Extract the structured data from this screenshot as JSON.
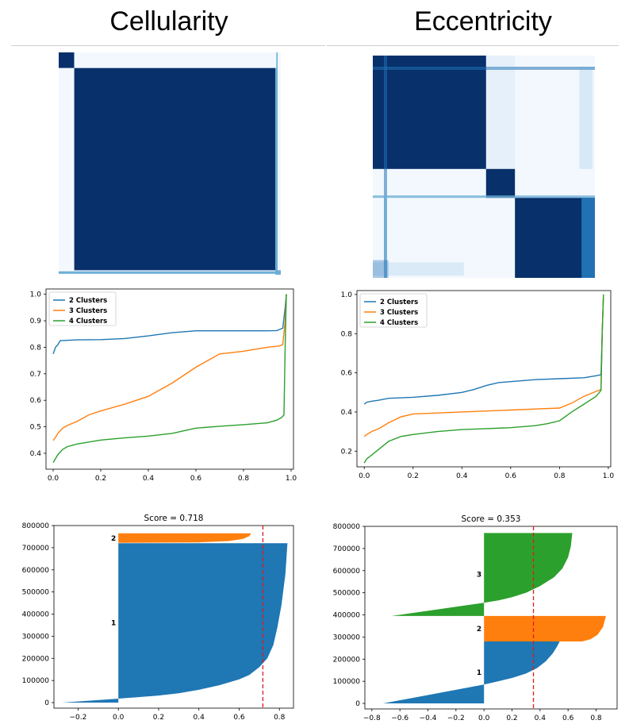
{
  "panels": {
    "left_title": "Cellularity",
    "right_title": "Eccentricity"
  },
  "colors": {
    "heatmap_dark": "#08306b",
    "heatmap_mid": "#2171b5",
    "heatmap_light": "#6baed6",
    "heatmap_pale": "#f3f8fe",
    "blue": "#1f77b4",
    "orange": "#ff7f0e",
    "green": "#2ca02c",
    "threshold": "#e31a1c"
  },
  "chart_data": [
    {
      "id": "cellularity-consensus-matrix",
      "type": "heatmap",
      "blocks": [
        [
          0.0,
          0.07
        ],
        [
          0.07,
          0.98
        ],
        [
          0.98,
          1.0
        ]
      ]
    },
    {
      "id": "eccentricity-consensus-matrix",
      "type": "heatmap",
      "blocks": [
        [
          0.0,
          0.51
        ],
        [
          0.51,
          0.64
        ],
        [
          0.64,
          1.0
        ]
      ]
    },
    {
      "id": "cellularity-cdf",
      "type": "line",
      "xlim": [
        -0.03,
        1.01
      ],
      "ylim": [
        0.34,
        1.02
      ],
      "xticks": [
        "0.0",
        "0.2",
        "0.4",
        "0.6",
        "0.8",
        "1.0"
      ],
      "yticks": [
        "0.4",
        "0.5",
        "0.6",
        "0.7",
        "0.8",
        "0.9",
        "1.0"
      ],
      "legend_position": "top-left",
      "series": [
        {
          "name": "2 Clusters",
          "color": "blue",
          "x": [
            0,
            0.01,
            0.02,
            0.03,
            0.05,
            0.1,
            0.2,
            0.3,
            0.4,
            0.5,
            0.6,
            0.7,
            0.8,
            0.9,
            0.94,
            0.965,
            0.975,
            0.98
          ],
          "y": [
            0.775,
            0.8,
            0.81,
            0.825,
            0.826,
            0.828,
            0.829,
            0.833,
            0.843,
            0.855,
            0.862,
            0.862,
            0.862,
            0.862,
            0.863,
            0.872,
            0.95,
            1.0
          ]
        },
        {
          "name": "3 Clusters",
          "color": "orange",
          "x": [
            0,
            0.01,
            0.02,
            0.04,
            0.06,
            0.1,
            0.15,
            0.2,
            0.3,
            0.4,
            0.5,
            0.6,
            0.65,
            0.7,
            0.8,
            0.9,
            0.95,
            0.965,
            0.975,
            0.98
          ],
          "y": [
            0.448,
            0.46,
            0.475,
            0.495,
            0.505,
            0.52,
            0.545,
            0.56,
            0.585,
            0.615,
            0.665,
            0.725,
            0.75,
            0.775,
            0.785,
            0.8,
            0.805,
            0.81,
            0.9,
            1.0
          ]
        },
        {
          "name": "4 Clusters",
          "color": "green",
          "x": [
            0,
            0.01,
            0.02,
            0.04,
            0.06,
            0.1,
            0.2,
            0.3,
            0.4,
            0.5,
            0.55,
            0.6,
            0.7,
            0.8,
            0.9,
            0.94,
            0.96,
            0.97,
            0.975,
            0.98
          ],
          "y": [
            0.365,
            0.38,
            0.395,
            0.415,
            0.425,
            0.435,
            0.45,
            0.458,
            0.465,
            0.475,
            0.485,
            0.495,
            0.502,
            0.508,
            0.515,
            0.525,
            0.535,
            0.545,
            0.8,
            1.0
          ]
        }
      ]
    },
    {
      "id": "eccentricity-cdf",
      "type": "line",
      "xlim": [
        -0.03,
        1.01
      ],
      "ylim": [
        0.12,
        1.02
      ],
      "xticks": [
        "0.0",
        "0.2",
        "0.4",
        "0.6",
        "0.8",
        "1.0"
      ],
      "yticks": [
        "0.2",
        "0.4",
        "0.6",
        "0.8",
        "1.0"
      ],
      "legend_position": "top-left",
      "series": [
        {
          "name": "2 Clusters",
          "color": "blue",
          "x": [
            0,
            0.01,
            0.03,
            0.06,
            0.1,
            0.2,
            0.3,
            0.4,
            0.45,
            0.5,
            0.55,
            0.6,
            0.7,
            0.8,
            0.9,
            0.95,
            0.97,
            0.975,
            0.98
          ],
          "y": [
            0.44,
            0.45,
            0.455,
            0.46,
            0.47,
            0.475,
            0.485,
            0.5,
            0.515,
            0.535,
            0.55,
            0.555,
            0.565,
            0.57,
            0.575,
            0.585,
            0.59,
            0.8,
            1.0
          ]
        },
        {
          "name": "3 Clusters",
          "color": "orange",
          "x": [
            0,
            0.01,
            0.03,
            0.06,
            0.1,
            0.15,
            0.2,
            0.3,
            0.4,
            0.5,
            0.6,
            0.7,
            0.8,
            0.85,
            0.9,
            0.95,
            0.97,
            0.975,
            0.98
          ],
          "y": [
            0.275,
            0.285,
            0.3,
            0.315,
            0.345,
            0.375,
            0.39,
            0.395,
            0.4,
            0.405,
            0.41,
            0.415,
            0.42,
            0.445,
            0.48,
            0.505,
            0.515,
            0.8,
            1.0
          ]
        },
        {
          "name": "4 Clusters",
          "color": "green",
          "x": [
            0,
            0.01,
            0.03,
            0.06,
            0.1,
            0.15,
            0.2,
            0.3,
            0.4,
            0.5,
            0.6,
            0.7,
            0.75,
            0.8,
            0.85,
            0.9,
            0.95,
            0.97,
            0.975,
            0.98
          ],
          "y": [
            0.14,
            0.16,
            0.18,
            0.21,
            0.25,
            0.275,
            0.285,
            0.3,
            0.31,
            0.315,
            0.32,
            0.33,
            0.34,
            0.355,
            0.4,
            0.44,
            0.48,
            0.51,
            0.8,
            1.0
          ]
        }
      ]
    },
    {
      "id": "cellularity-silhouette",
      "type": "area",
      "title": "Score = 0.718",
      "score": 0.718,
      "xlim": [
        -0.32,
        0.87
      ],
      "ylim": [
        -25000,
        800000
      ],
      "xticks": [
        -0.2,
        0.0,
        0.2,
        0.4,
        0.6,
        0.8
      ],
      "xtick_labels": [
        "−0.2",
        "0.0",
        "0.2",
        "0.4",
        "0.6",
        "0.8"
      ],
      "yticks": [
        0,
        100000,
        200000,
        300000,
        400000,
        500000,
        600000,
        700000,
        800000
      ],
      "ytick_labels": [
        "0",
        "100000",
        "200000",
        "300000",
        "400000",
        "500000",
        "600000",
        "700000",
        "800000"
      ],
      "clusters": [
        {
          "label": "1",
          "color": "blue",
          "y0": 0,
          "y1": 720000,
          "neg_min": -0.28,
          "neg_count": 18000,
          "x": [
            0.0,
            0.1,
            0.2,
            0.3,
            0.4,
            0.5,
            0.6,
            0.65,
            0.7,
            0.74,
            0.77,
            0.79,
            0.81,
            0.83,
            0.84
          ],
          "y": [
            18000,
            25000,
            32000,
            42000,
            58000,
            78000,
            105000,
            125000,
            160000,
            200000,
            260000,
            340000,
            440000,
            580000,
            720000
          ]
        },
        {
          "label": "2",
          "color": "orange",
          "y0": 722000,
          "y1": 765000,
          "x": [
            0.0,
            0.4,
            0.55,
            0.62,
            0.65,
            0.66
          ],
          "y": [
            722000,
            724000,
            730000,
            740000,
            752000,
            765000
          ]
        }
      ]
    },
    {
      "id": "eccentricity-silhouette",
      "type": "area",
      "title": "Score = 0.353",
      "score": 0.353,
      "xlim": [
        -0.85,
        0.95
      ],
      "ylim": [
        -25000,
        800000
      ],
      "xticks": [
        -0.8,
        -0.6,
        -0.4,
        -0.2,
        0.0,
        0.2,
        0.4,
        0.6,
        0.8
      ],
      "xtick_labels": [
        "−0.8",
        "−0.6",
        "−0.4",
        "−0.2",
        "0.0",
        "0.2",
        "0.4",
        "0.6",
        "0.8"
      ],
      "yticks": [
        0,
        100000,
        200000,
        300000,
        400000,
        500000,
        600000,
        700000,
        800000
      ],
      "ytick_labels": [
        "0",
        "100000",
        "200000",
        "300000",
        "400000",
        "500000",
        "600000",
        "700000",
        "800000"
      ],
      "clusters": [
        {
          "label": "1",
          "color": "blue",
          "y0": 0,
          "y1": 280000,
          "neg_min": -0.72,
          "neg_count": 85000,
          "x": [
            0.0,
            0.1,
            0.2,
            0.3,
            0.38,
            0.44,
            0.49,
            0.52,
            0.54
          ],
          "y": [
            85000,
            100000,
            115000,
            135000,
            160000,
            190000,
            225000,
            255000,
            280000
          ]
        },
        {
          "label": "2",
          "color": "orange",
          "y0": 280000,
          "y1": 395000,
          "x": [
            0.0,
            0.7,
            0.76,
            0.81,
            0.85,
            0.87
          ],
          "y": [
            280000,
            280000,
            290000,
            310000,
            345000,
            395000
          ]
        },
        {
          "label": "3",
          "color": "green",
          "y0": 395000,
          "y1": 770000,
          "neg_min": -0.66,
          "neg_count": 60000,
          "x": [
            0.0,
            0.1,
            0.2,
            0.3,
            0.4,
            0.5,
            0.56,
            0.6,
            0.62,
            0.63
          ],
          "y": [
            455000,
            465000,
            480000,
            500000,
            530000,
            570000,
            610000,
            660000,
            710000,
            770000
          ]
        }
      ]
    }
  ]
}
